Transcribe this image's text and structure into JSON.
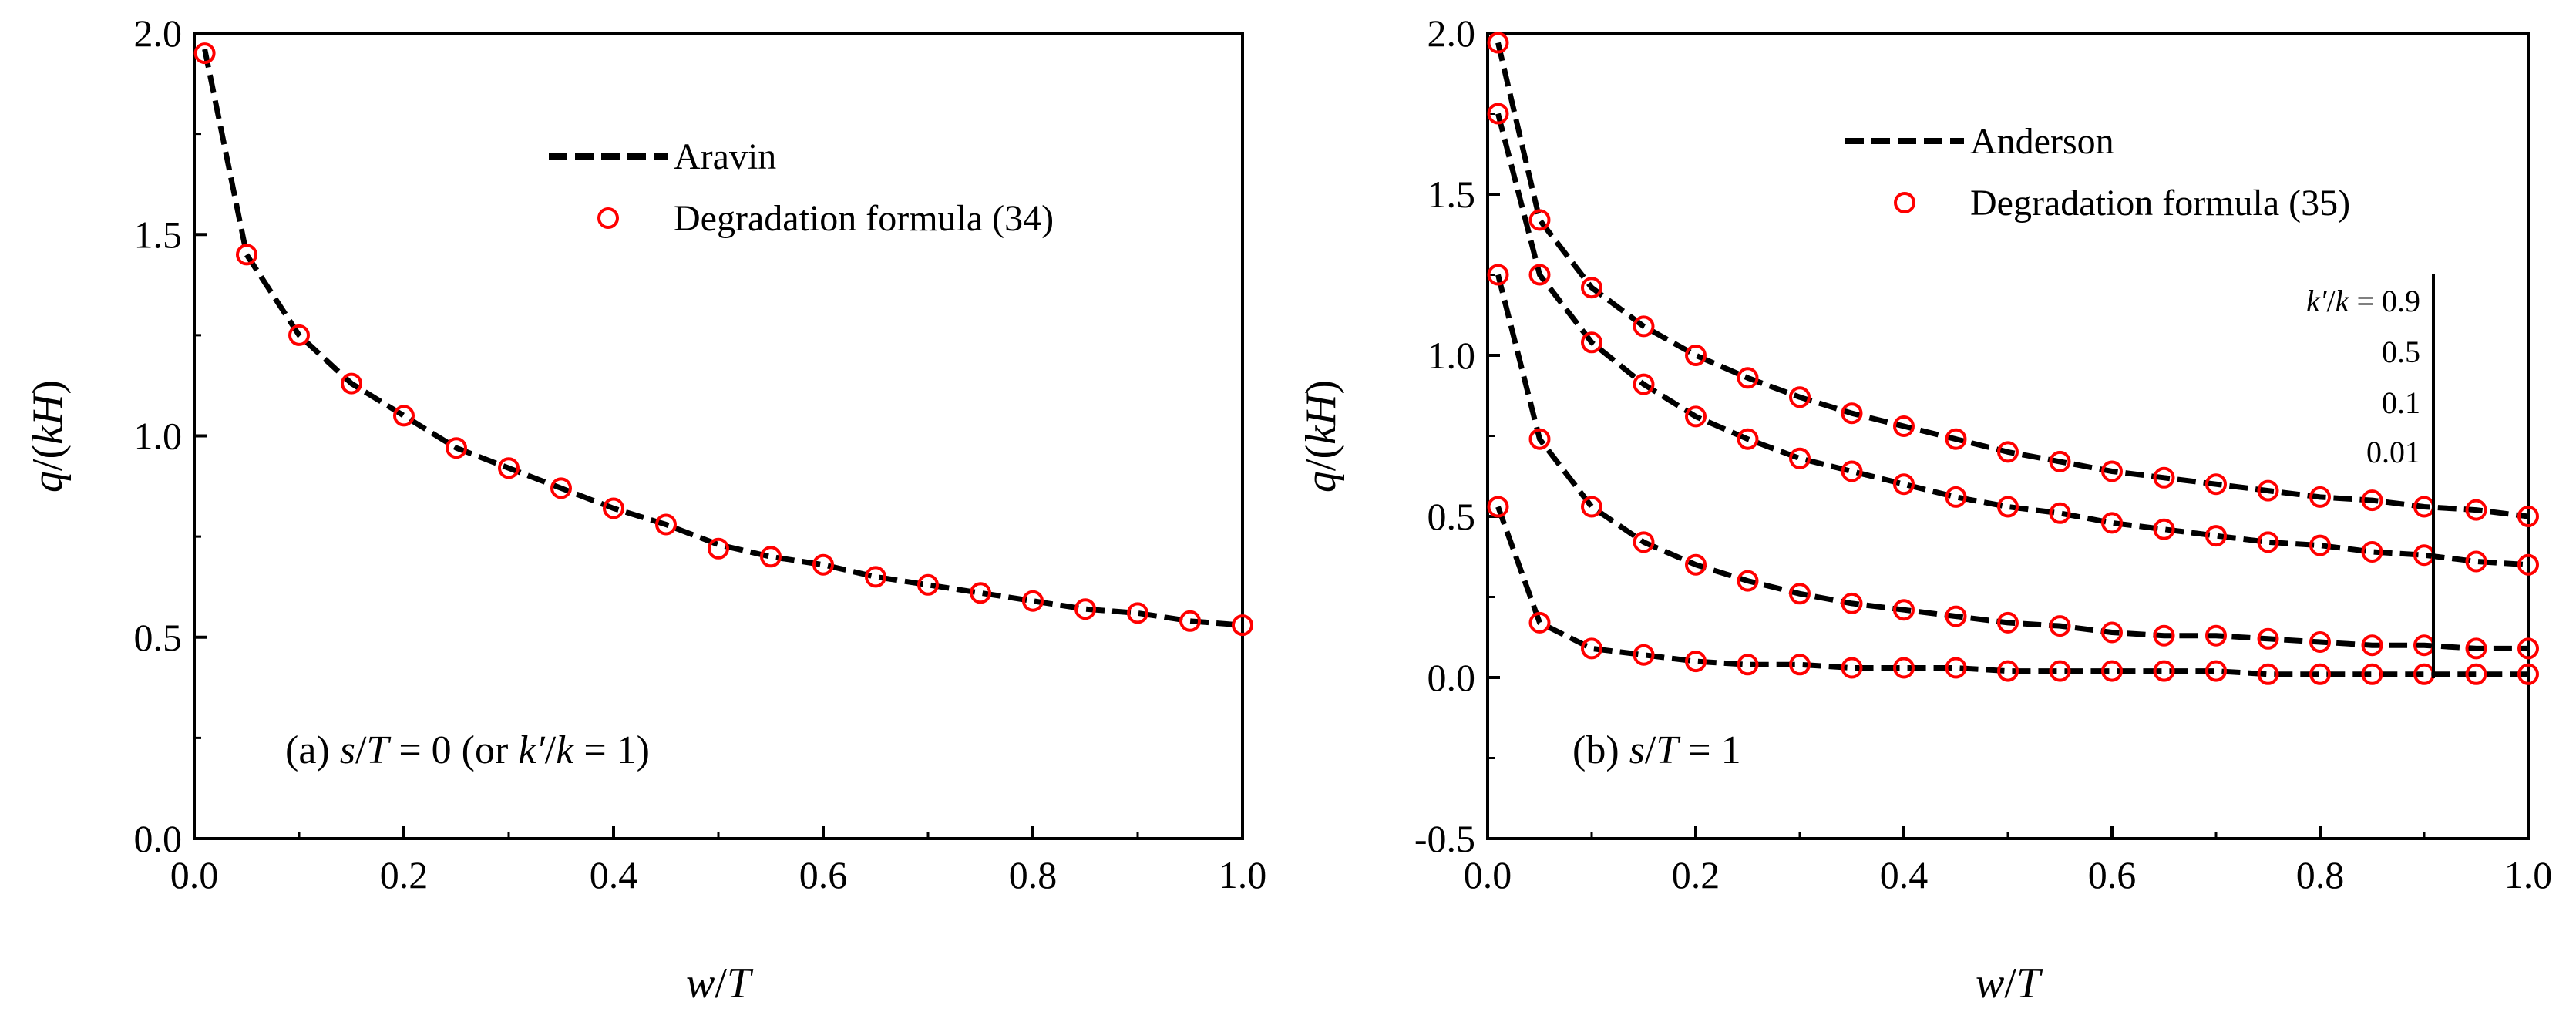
{
  "chart_data": [
    {
      "type": "line",
      "panel": "a",
      "panel_label": {
        "prefix": "(a) ",
        "s": "s",
        "slashT": "/",
        "T": "T",
        "eq0": " = 0 (or ",
        "kp": "k′",
        "slash2": "/",
        "k": "k",
        "eq1": " = 1)"
      },
      "xlabel": {
        "w": "w",
        "slash": "/",
        "T": "T"
      },
      "ylabel": {
        "q": "q",
        "open": "/(",
        "kH": "kH",
        "close": ")"
      },
      "xlim": [
        0,
        1.0
      ],
      "ylim": [
        0,
        2.0
      ],
      "xticks": [
        0.0,
        0.2,
        0.4,
        0.6,
        0.8,
        1.0
      ],
      "xtick_labels": [
        "0.0",
        "0.2",
        "0.4",
        "0.6",
        "0.8",
        "1.0"
      ],
      "yticks": [
        0.0,
        0.5,
        1.0,
        1.5,
        2.0
      ],
      "ytick_labels": [
        "0.0",
        "0.5",
        "1.0",
        "1.5",
        "2.0"
      ],
      "legend": [
        "Aravin",
        "Degradation formula (34)"
      ],
      "legend_placement": "top-right",
      "x": [
        0.01,
        0.05,
        0.1,
        0.15,
        0.2,
        0.25,
        0.3,
        0.35,
        0.4,
        0.45,
        0.5,
        0.55,
        0.6,
        0.65,
        0.7,
        0.75,
        0.8,
        0.85,
        0.9,
        0.95,
        1.0
      ],
      "series": [
        {
          "name": "Aravin",
          "line_values": [
            1.96,
            1.45,
            1.25,
            1.13,
            1.05,
            0.97,
            0.92,
            0.87,
            0.82,
            0.78,
            0.73,
            0.7,
            0.68,
            0.65,
            0.63,
            0.61,
            0.59,
            0.57,
            0.56,
            0.54,
            0.53
          ],
          "marker_values": [
            1.95,
            1.45,
            1.25,
            1.13,
            1.05,
            0.97,
            0.92,
            0.87,
            0.82,
            0.78,
            0.72,
            0.7,
            0.68,
            0.65,
            0.63,
            0.61,
            0.59,
            0.57,
            0.56,
            0.54,
            0.53
          ]
        }
      ]
    },
    {
      "type": "line",
      "panel": "b",
      "panel_label": {
        "prefix": "(b) ",
        "s": "s",
        "slashT": "/",
        "T": "T",
        "eq": " = 1"
      },
      "xlabel": {
        "w": "w",
        "slash": "/",
        "T": "T"
      },
      "ylabel": {
        "q": "q",
        "open": "/(",
        "kH": "kH",
        "close": ")"
      },
      "xlim": [
        0,
        1.0
      ],
      "ylim": [
        -0.5,
        2.0
      ],
      "xticks": [
        0.0,
        0.2,
        0.4,
        0.6,
        0.8,
        1.0
      ],
      "xtick_labels": [
        "0.0",
        "0.2",
        "0.4",
        "0.6",
        "0.8",
        "1.0"
      ],
      "yticks": [
        -0.5,
        0.0,
        0.5,
        1.0,
        1.5,
        2.0
      ],
      "ytick_labels": [
        "-0.5",
        "0.0",
        "0.5",
        "1.0",
        "1.5",
        "2.0"
      ],
      "legend": [
        "Anderson",
        "Degradation formula (35)"
      ],
      "legend_placement": "top-right",
      "annotation": {
        "kp": "k′",
        "slash": "/",
        "k": "k",
        "eq": " = 0.9",
        "values": [
          "0.5",
          "0.1",
          "0.01"
        ]
      },
      "x": [
        0.01,
        0.05,
        0.1,
        0.15,
        0.2,
        0.25,
        0.3,
        0.35,
        0.4,
        0.45,
        0.5,
        0.55,
        0.6,
        0.65,
        0.7,
        0.75,
        0.8,
        0.85,
        0.9,
        0.95,
        1.0
      ],
      "series": [
        {
          "name": "k'/k = 0.9",
          "values": [
            1.97,
            1.42,
            1.21,
            1.09,
            1.0,
            0.93,
            0.87,
            0.82,
            0.78,
            0.74,
            0.7,
            0.67,
            0.64,
            0.62,
            0.6,
            0.58,
            0.56,
            0.55,
            0.53,
            0.52,
            0.5
          ]
        },
        {
          "name": "k'/k = 0.5",
          "values": [
            1.75,
            1.25,
            1.04,
            0.91,
            0.81,
            0.74,
            0.68,
            0.64,
            0.6,
            0.56,
            0.53,
            0.51,
            0.48,
            0.46,
            0.44,
            0.42,
            0.41,
            0.39,
            0.38,
            0.36,
            0.35
          ]
        },
        {
          "name": "k'/k = 0.1",
          "values": [
            1.25,
            0.74,
            0.53,
            0.42,
            0.35,
            0.3,
            0.26,
            0.23,
            0.21,
            0.19,
            0.17,
            0.16,
            0.14,
            0.13,
            0.13,
            0.12,
            0.11,
            0.1,
            0.1,
            0.09,
            0.09
          ]
        },
        {
          "name": "k'/k = 0.01",
          "values": [
            0.53,
            0.17,
            0.09,
            0.07,
            0.05,
            0.04,
            0.04,
            0.03,
            0.03,
            0.03,
            0.02,
            0.02,
            0.02,
            0.02,
            0.02,
            0.01,
            0.01,
            0.01,
            0.01,
            0.01,
            0.01
          ]
        }
      ]
    }
  ],
  "colors": {
    "line": "#000000",
    "marker": "#ff0000",
    "axis": "#000000"
  }
}
